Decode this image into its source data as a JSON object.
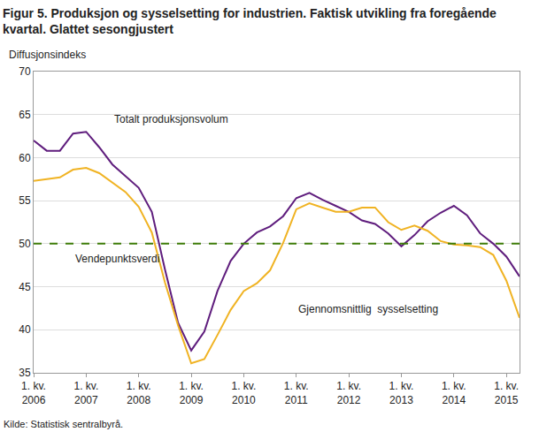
{
  "chart_data": {
    "type": "line",
    "title": "Figur 5. Produksjon og sysselsetting for industrien. Faktisk utvikling fra foregående\nkvartal. Glattet sesongjustert",
    "y_label": "Diffusjonsindeks",
    "source": "Kilde: Statistisk sentralbyrå.",
    "categories": [
      "1. kv.\n2006",
      null,
      null,
      null,
      "1. kv.\n2007",
      null,
      null,
      null,
      "1. kv.\n2008",
      null,
      null,
      null,
      "1. kv.\n2009",
      null,
      null,
      null,
      "1. kv.\n2010",
      null,
      null,
      null,
      "1. kv.\n2011",
      null,
      null,
      null,
      "1. kv.\n2012",
      null,
      null,
      null,
      "1. kv.\n2013",
      null,
      null,
      null,
      "1. kv.\n2014",
      null,
      null,
      null,
      "1. kv.\n2015",
      null
    ],
    "series": [
      {
        "name": "Totalt produksjonsvolum",
        "color": "#5f1d7d",
        "values": [
          62.0,
          60.8,
          60.8,
          62.8,
          63.0,
          61.2,
          59.2,
          57.9,
          56.5,
          53.7,
          47.0,
          40.8,
          37.6,
          39.8,
          44.5,
          48.0,
          50.0,
          51.3,
          52.0,
          53.2,
          55.3,
          55.9,
          55.1,
          54.4,
          53.7,
          52.7,
          52.3,
          51.2,
          49.7,
          51.0,
          52.6,
          53.6,
          54.4,
          53.3,
          51.2,
          50.0,
          48.5,
          46.2
        ]
      },
      {
        "name": "Gjennomsnittlig  sysselsetting",
        "color": "#f0b323",
        "values": [
          57.3,
          57.5,
          57.7,
          58.6,
          58.8,
          58.2,
          57.1,
          56.0,
          54.3,
          51.3,
          45.5,
          40.5,
          36.1,
          36.6,
          39.4,
          42.3,
          44.5,
          45.4,
          46.9,
          50.1,
          54.0,
          54.7,
          54.2,
          53.7,
          53.7,
          54.2,
          54.2,
          52.5,
          51.6,
          52.1,
          51.5,
          50.3,
          49.9,
          49.8,
          49.6,
          48.7,
          45.7,
          41.4
        ]
      }
    ],
    "annotations": [
      {
        "text": "Totalt produksjonsvolum",
        "x": 6,
        "y": 64.5
      },
      {
        "text": "Gjennomsnittlig  sysselsetting",
        "x": 20,
        "y": 42.4
      },
      {
        "text": "Vendepunktsverdi",
        "x": 3,
        "y": 48.2
      }
    ],
    "reference_line": {
      "value": 50,
      "color": "#3f7d0a",
      "line_style": "dash"
    },
    "ylim": [
      35,
      70
    ],
    "yticks": [
      35,
      40,
      45,
      50,
      55,
      60,
      65,
      70
    ],
    "grid": true,
    "legend": false
  }
}
